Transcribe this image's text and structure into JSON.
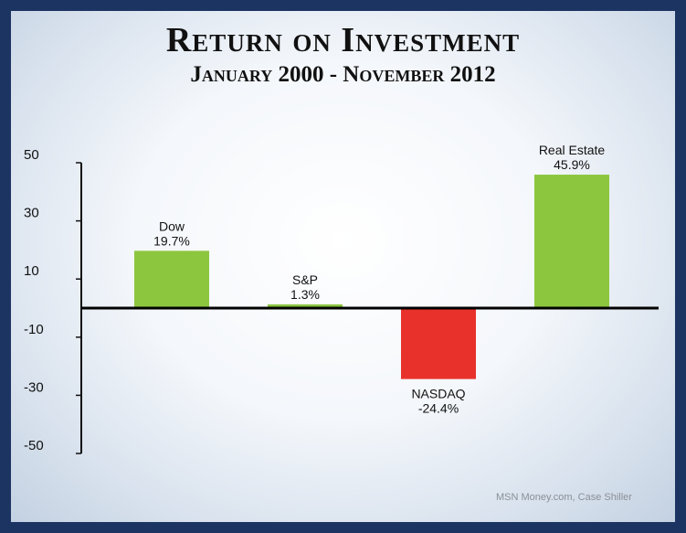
{
  "chart_data": {
    "type": "bar",
    "title": "Return on Investment",
    "subtitle": "January 2000 - November 2012",
    "categories": [
      "Dow",
      "S&P",
      "NASDAQ",
      "Real Estate"
    ],
    "values": [
      19.7,
      1.3,
      -24.4,
      45.9
    ],
    "value_labels": [
      "19.7%",
      "1.3%",
      "-24.4%",
      "45.9%"
    ],
    "colors": [
      "#8cc63f",
      "#8cc63f",
      "#e8312b",
      "#8cc63f"
    ],
    "ylim": [
      -50,
      50
    ],
    "yticks": [
      50,
      30,
      10,
      -10,
      -30,
      -50
    ],
    "ytick_labels": [
      "50",
      "30",
      "10",
      "-10",
      "-30",
      "-50"
    ],
    "grid": false,
    "source": "MSN Money.com, Case Shiller"
  }
}
